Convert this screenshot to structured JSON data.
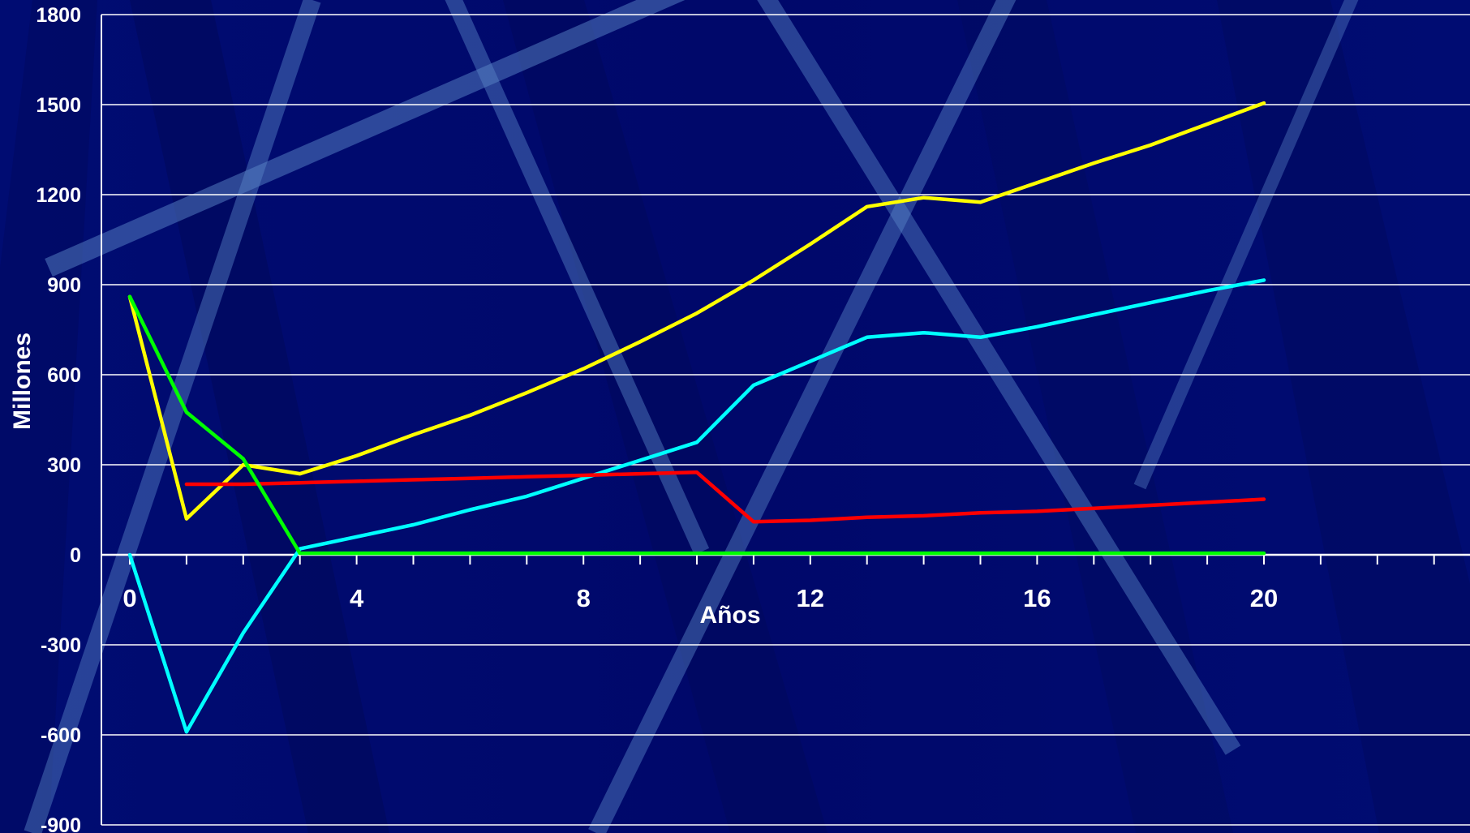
{
  "chart_data": {
    "type": "line",
    "xlabel": "Años",
    "ylabel": "Millones",
    "xlim": [
      0,
      23
    ],
    "ylim": [
      -900,
      1800
    ],
    "x_ticks": [
      0,
      4,
      8,
      12,
      16,
      20
    ],
    "y_ticks": [
      1800,
      1500,
      1200,
      900,
      600,
      300,
      0,
      -300,
      -600,
      -900
    ],
    "grid": true,
    "series": [
      {
        "color": "#ffff00",
        "x": [
          0,
          1,
          2,
          3,
          4,
          5,
          6,
          7,
          8,
          9,
          10,
          11,
          12,
          13,
          14,
          15,
          16,
          17,
          18,
          19,
          20
        ],
        "values": [
          860,
          120,
          300,
          270,
          330,
          400,
          465,
          540,
          620,
          710,
          805,
          915,
          1035,
          1160,
          1190,
          1175,
          1240,
          1305,
          1365,
          1435,
          1505
        ]
      },
      {
        "color": "#00ffff",
        "x": [
          0,
          1,
          2,
          3,
          4,
          5,
          6,
          7,
          8,
          9,
          10,
          11,
          12,
          13,
          14,
          15,
          16,
          17,
          18,
          19,
          20
        ],
        "values": [
          0,
          -590,
          -260,
          20,
          60,
          100,
          150,
          195,
          255,
          315,
          375,
          565,
          645,
          725,
          740,
          725,
          760,
          800,
          840,
          880,
          915
        ]
      },
      {
        "color": "#ff0000",
        "x": [
          1,
          2,
          3,
          4,
          5,
          6,
          7,
          8,
          9,
          10,
          11,
          12,
          13,
          14,
          15,
          16,
          17,
          18,
          19,
          20
        ],
        "values": [
          235,
          235,
          240,
          245,
          250,
          255,
          260,
          265,
          270,
          275,
          110,
          115,
          125,
          130,
          140,
          145,
          155,
          165,
          175,
          185
        ]
      },
      {
        "color": "#00ff00",
        "x": [
          0,
          1,
          2,
          3,
          4,
          5,
          6,
          7,
          8,
          9,
          10,
          11,
          12,
          13,
          14,
          15,
          16,
          17,
          18,
          19,
          20
        ],
        "values": [
          860,
          475,
          320,
          5,
          5,
          5,
          5,
          5,
          5,
          5,
          5,
          5,
          5,
          5,
          5,
          5,
          5,
          5,
          5,
          5,
          5
        ]
      }
    ]
  }
}
